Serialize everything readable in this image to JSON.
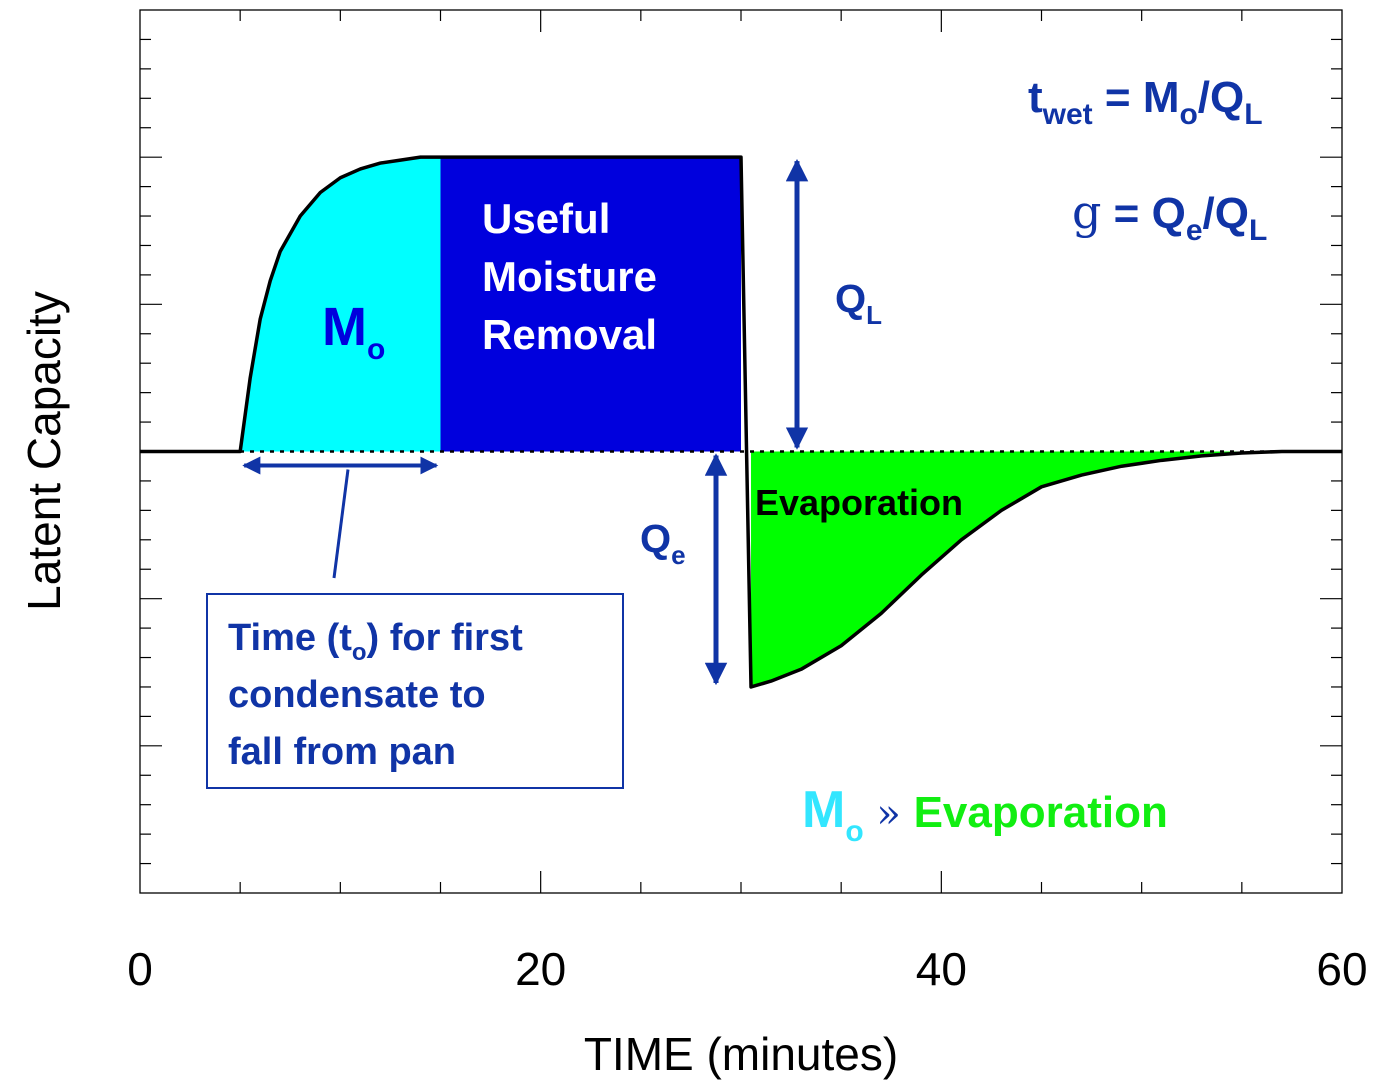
{
  "chart_data": {
    "type": "area",
    "xlabel": "TIME (minutes)",
    "ylabel": "Latent Capacity",
    "xlim": [
      0,
      60
    ],
    "ylim": [
      -1.5,
      1.5
    ],
    "x_ticks": [
      "0",
      "20",
      "40",
      "60"
    ],
    "grid": false,
    "baseline": 0,
    "steady_level": 1.0,
    "t_start": 5,
    "t_o": 15,
    "t_off": 30,
    "series": [
      {
        "values_xy": [
          [
            0,
            0
          ],
          [
            5,
            0
          ],
          [
            5.5,
            0.25
          ],
          [
            6,
            0.45
          ],
          [
            6.5,
            0.58
          ],
          [
            7,
            0.68
          ],
          [
            8,
            0.8
          ],
          [
            9,
            0.88
          ],
          [
            10,
            0.93
          ],
          [
            11,
            0.96
          ],
          [
            12,
            0.98
          ],
          [
            13,
            0.99
          ],
          [
            14,
            1.0
          ],
          [
            15,
            1.0
          ],
          [
            30,
            1.0
          ],
          [
            30.5,
            -0.8
          ],
          [
            31.5,
            -0.78
          ],
          [
            33,
            -0.74
          ],
          [
            35,
            -0.66
          ],
          [
            37,
            -0.55
          ],
          [
            39,
            -0.42
          ],
          [
            41,
            -0.3
          ],
          [
            43,
            -0.2
          ],
          [
            45,
            -0.12
          ],
          [
            47,
            -0.08
          ],
          [
            49,
            -0.05
          ],
          [
            51,
            -0.03
          ],
          [
            53,
            -0.015
          ],
          [
            55,
            -0.005
          ],
          [
            57,
            0
          ],
          [
            60,
            0
          ]
        ]
      }
    ],
    "annotations": {
      "mo_region": {
        "main": "M",
        "sub": "o"
      },
      "useful_region": [
        "Useful",
        "Moisture",
        "Removal"
      ],
      "evap_region": "Evaporation",
      "ql": {
        "main": "Q",
        "sub": "L"
      },
      "qe": {
        "main": "Q",
        "sub": "e"
      },
      "twet_formula": {
        "t": "t",
        "t_sub": "wet",
        "eq": " = M",
        "m_sub": "o",
        "div": "/Q",
        "q_sub": "L"
      },
      "g_formula": {
        "g": "g",
        "eq": " = Q",
        "e_sub": "e",
        "div": "/Q",
        "q_sub": "L"
      },
      "bottom_note": {
        "m": "M",
        "m_sub": "o",
        "sym": " » ",
        "evap": "Evaporation"
      },
      "box_lines": [
        {
          "pre": "Time (t",
          "sub": "o",
          "post": ") for first"
        },
        {
          "pre": "condensate to"
        },
        {
          "pre": "fall from pan"
        }
      ]
    },
    "colors": {
      "mo_fill": "#00FFFF",
      "useful_fill": "#0000DD",
      "evap_fill": "#00FF00",
      "annotation": "#1034A6",
      "mo_note": "#33E6FF",
      "evap_note": "#11EE11"
    }
  }
}
